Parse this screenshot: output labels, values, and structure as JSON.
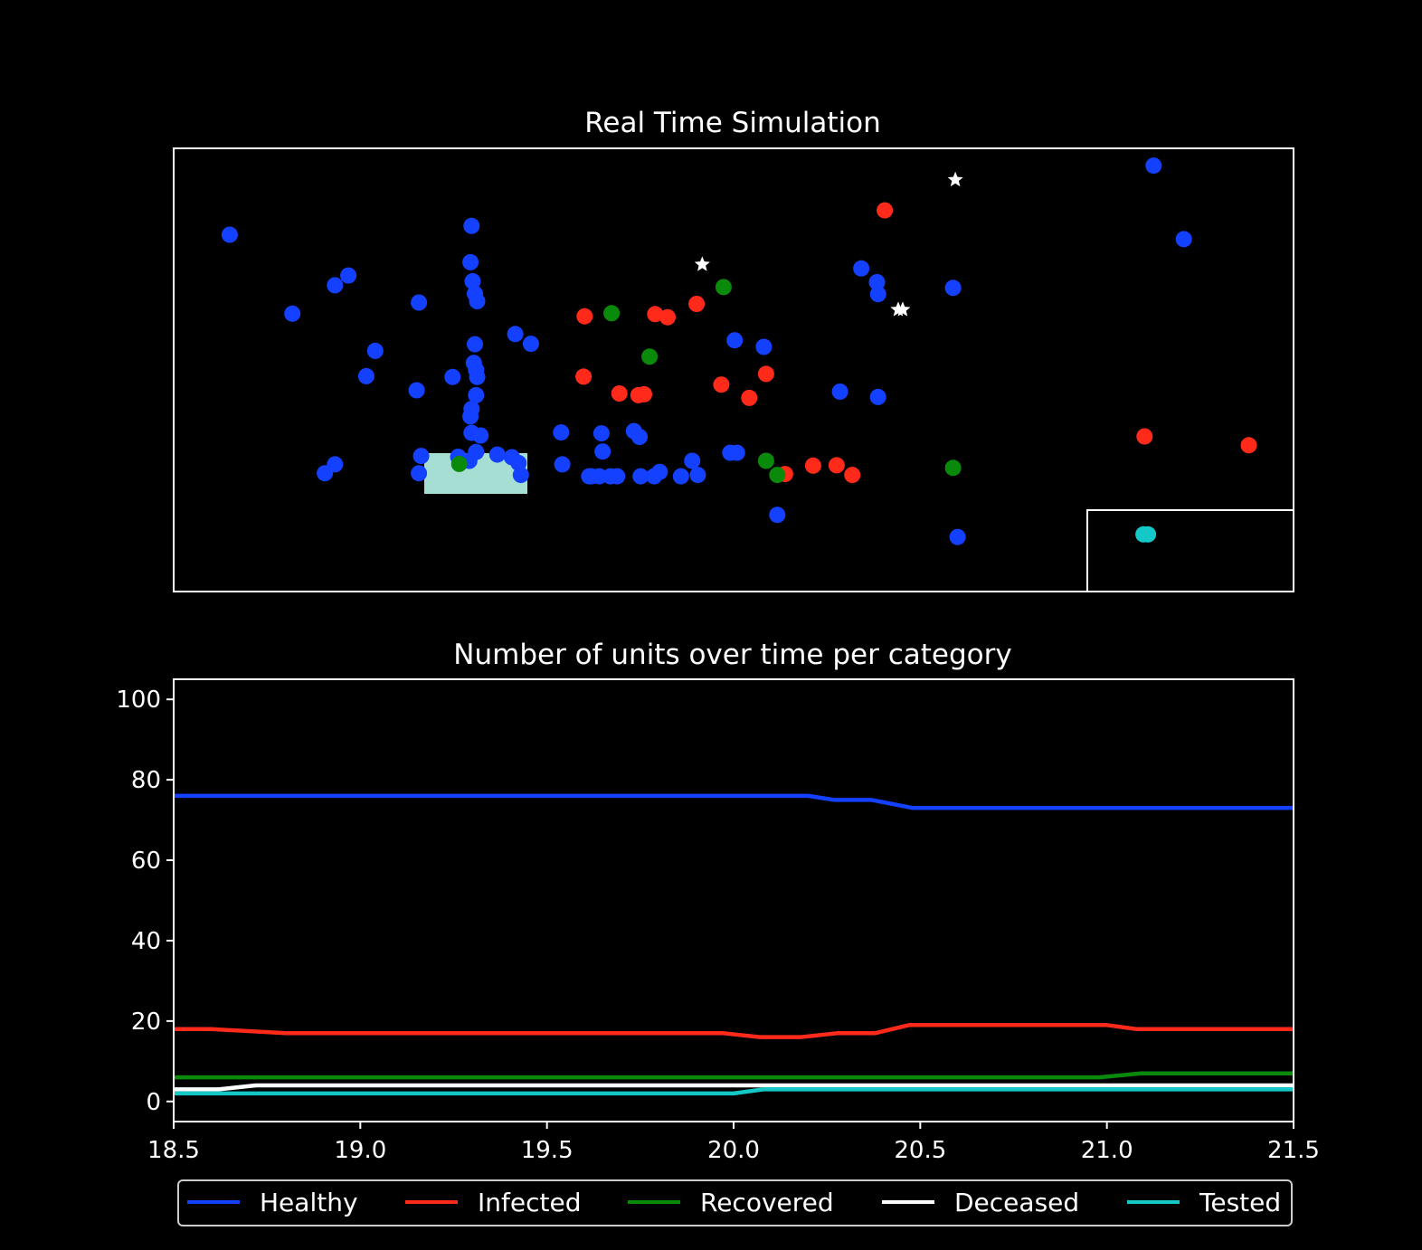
{
  "chart_data": [
    {
      "type": "scatter",
      "title": "Real Time Simulation",
      "axes_visible": false,
      "overlays": [
        {
          "kind": "rectangle",
          "fill": "#a6ded3",
          "role": "facility"
        },
        {
          "kind": "rectangle",
          "fill": "none",
          "stroke": "#ffffff",
          "role": "quarantine-zone"
        }
      ],
      "series": [
        {
          "category": "healthy",
          "color": "#1440ff",
          "marker": "circle",
          "points": [
            [
              0.05,
              0.805
            ],
            [
              0.106,
              0.627
            ],
            [
              0.144,
              0.691
            ],
            [
              0.156,
              0.713
            ],
            [
              0.18,
              0.543
            ],
            [
              0.172,
              0.486
            ],
            [
              0.219,
              0.652
            ],
            [
              0.217,
              0.454
            ],
            [
              0.249,
              0.484
            ],
            [
              0.266,
              0.412
            ],
            [
              0.266,
              0.825
            ],
            [
              0.265,
              0.743
            ],
            [
              0.267,
              0.7
            ],
            [
              0.269,
              0.672
            ],
            [
              0.271,
              0.655
            ],
            [
              0.269,
              0.558
            ],
            [
              0.268,
              0.516
            ],
            [
              0.27,
              0.5
            ],
            [
              0.271,
              0.484
            ],
            [
              0.27,
              0.443
            ],
            [
              0.265,
              0.395
            ],
            [
              0.266,
              0.358
            ],
            [
              0.274,
              0.352
            ],
            [
              0.27,
              0.315
            ],
            [
              0.254,
              0.304
            ],
            [
              0.264,
              0.295
            ],
            [
              0.221,
              0.306
            ],
            [
              0.219,
              0.267
            ],
            [
              0.144,
              0.287
            ],
            [
              0.135,
              0.267
            ],
            [
              0.305,
              0.581
            ],
            [
              0.319,
              0.559
            ],
            [
              0.289,
              0.309
            ],
            [
              0.302,
              0.303
            ],
            [
              0.308,
              0.29
            ],
            [
              0.31,
              0.263
            ],
            [
              0.346,
              0.359
            ],
            [
              0.347,
              0.287
            ],
            [
              0.382,
              0.357
            ],
            [
              0.383,
              0.316
            ],
            [
              0.371,
              0.26
            ],
            [
              0.38,
              0.26
            ],
            [
              0.39,
              0.26
            ],
            [
              0.396,
              0.26
            ],
            [
              0.411,
              0.362
            ],
            [
              0.416,
              0.349
            ],
            [
              0.417,
              0.26
            ],
            [
              0.429,
              0.26
            ],
            [
              0.434,
              0.27
            ],
            [
              0.453,
              0.26
            ],
            [
              0.463,
              0.295
            ],
            [
              0.468,
              0.263
            ],
            [
              0.497,
              0.313
            ],
            [
              0.501,
              0.567
            ],
            [
              0.503,
              0.313
            ],
            [
              0.527,
              0.552
            ],
            [
              0.539,
              0.173
            ],
            [
              0.595,
              0.451
            ],
            [
              0.614,
              0.729
            ],
            [
              0.628,
              0.698
            ],
            [
              0.629,
              0.671
            ],
            [
              0.629,
              0.439
            ],
            [
              0.696,
              0.685
            ],
            [
              0.7,
              0.123
            ],
            [
              0.875,
              0.961
            ],
            [
              0.902,
              0.795
            ],
            [
              0.373,
              0.26
            ]
          ]
        },
        {
          "category": "infected",
          "color": "#ff2a1a",
          "marker": "circle",
          "points": [
            [
              0.367,
              0.621
            ],
            [
              0.366,
              0.485
            ],
            [
              0.398,
              0.447
            ],
            [
              0.415,
              0.443
            ],
            [
              0.42,
              0.445
            ],
            [
              0.43,
              0.626
            ],
            [
              0.441,
              0.619
            ],
            [
              0.467,
              0.649
            ],
            [
              0.489,
              0.467
            ],
            [
              0.514,
              0.437
            ],
            [
              0.529,
              0.491
            ],
            [
              0.546,
              0.265
            ],
            [
              0.571,
              0.284
            ],
            [
              0.592,
              0.285
            ],
            [
              0.606,
              0.263
            ],
            [
              0.635,
              0.86
            ],
            [
              0.867,
              0.35
            ],
            [
              0.96,
              0.33
            ]
          ]
        },
        {
          "category": "recovered",
          "color": "#0a8a0a",
          "marker": "circle",
          "points": [
            [
              0.255,
              0.288
            ],
            [
              0.391,
              0.628
            ],
            [
              0.425,
              0.53
            ],
            [
              0.491,
              0.687
            ],
            [
              0.529,
              0.295
            ],
            [
              0.539,
              0.263
            ],
            [
              0.696,
              0.279
            ]
          ]
        },
        {
          "category": "deceased",
          "color": "#ffffff",
          "marker": "star",
          "points": [
            [
              0.472,
              0.738
            ],
            [
              0.647,
              0.636
            ],
            [
              0.651,
              0.636
            ],
            [
              0.698,
              0.929
            ]
          ]
        },
        {
          "category": "tested",
          "color": "#14c8c8",
          "marker": "circle",
          "points": [
            [
              0.866,
              0.129
            ],
            [
              0.87,
              0.129
            ]
          ]
        }
      ]
    },
    {
      "type": "line",
      "title": "Number of units over time per category",
      "xlim": [
        18.5,
        21.5
      ],
      "ylim": [
        -5,
        105
      ],
      "xticks": [
        "18.5",
        "19.0",
        "19.5",
        "20.0",
        "20.5",
        "21.0",
        "21.5"
      ],
      "yticks": [
        "0",
        "20",
        "40",
        "60",
        "80",
        "100"
      ],
      "legend": "bottom-center, single row, outside plot",
      "series": [
        {
          "name": "Healthy",
          "color": "#1440ff",
          "x": [
            18.5,
            20.2,
            20.27,
            20.37,
            20.48,
            21.5
          ],
          "y": [
            76,
            76,
            75,
            75,
            73,
            73
          ]
        },
        {
          "name": "Infected",
          "color": "#ff2a1a",
          "x": [
            18.5,
            18.6,
            18.8,
            19.97,
            20.07,
            20.18,
            20.28,
            20.38,
            20.47,
            21.0,
            21.08,
            21.5
          ],
          "y": [
            18,
            18,
            17,
            17,
            16,
            16,
            17,
            17,
            19,
            19,
            18,
            18
          ]
        },
        {
          "name": "Recovered",
          "color": "#0a8a0a",
          "x": [
            18.5,
            20.98,
            21.09,
            21.5
          ],
          "y": [
            6,
            6,
            7,
            7
          ]
        },
        {
          "name": "Deceased",
          "color": "#ffffff",
          "x": [
            18.5,
            18.62,
            18.72,
            21.5
          ],
          "y": [
            3,
            3,
            4,
            4
          ]
        },
        {
          "name": "Tested",
          "color": "#14c8c8",
          "x": [
            18.5,
            20.0,
            20.08,
            21.5
          ],
          "y": [
            2,
            2,
            3,
            3
          ]
        }
      ]
    }
  ]
}
